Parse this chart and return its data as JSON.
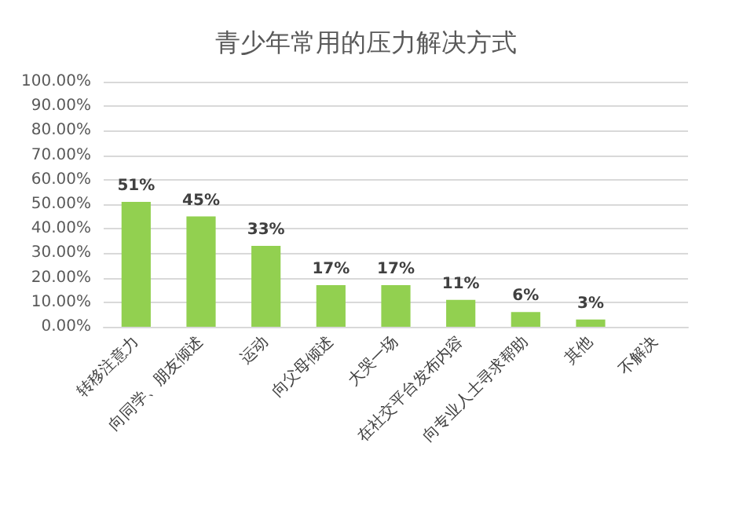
{
  "chart_data": {
    "type": "bar",
    "title": "青少年常用的压力解决方式",
    "categories": [
      "转移注意力",
      "向同学、朋友倾述",
      "运动",
      "向父母倾述",
      "大哭一场",
      "在社交平台发布内容",
      "向专业人士寻求帮助",
      "其他",
      "不解决"
    ],
    "values": [
      51,
      45,
      33,
      17,
      17,
      11,
      6,
      3,
      0
    ],
    "value_labels": [
      "51%",
      "45%",
      "33%",
      "17%",
      "17%",
      "11%",
      "6%",
      "3%",
      null
    ],
    "color": "#92d050",
    "ylim": [
      0,
      100
    ],
    "yticks": [
      {
        "value": 0,
        "label": "0.00%"
      },
      {
        "value": 10,
        "label": "10.00%"
      },
      {
        "value": 20,
        "label": "20.00%"
      },
      {
        "value": 30,
        "label": "30.00%"
      },
      {
        "value": 40,
        "label": "40.00%"
      },
      {
        "value": 50,
        "label": "50.00%"
      },
      {
        "value": 60,
        "label": "60.00%"
      },
      {
        "value": 70,
        "label": "70.00%"
      },
      {
        "value": 80,
        "label": "80.00%"
      },
      {
        "value": 90,
        "label": "90.00%"
      },
      {
        "value": 100,
        "label": "100.00%"
      }
    ],
    "grid": "y"
  }
}
